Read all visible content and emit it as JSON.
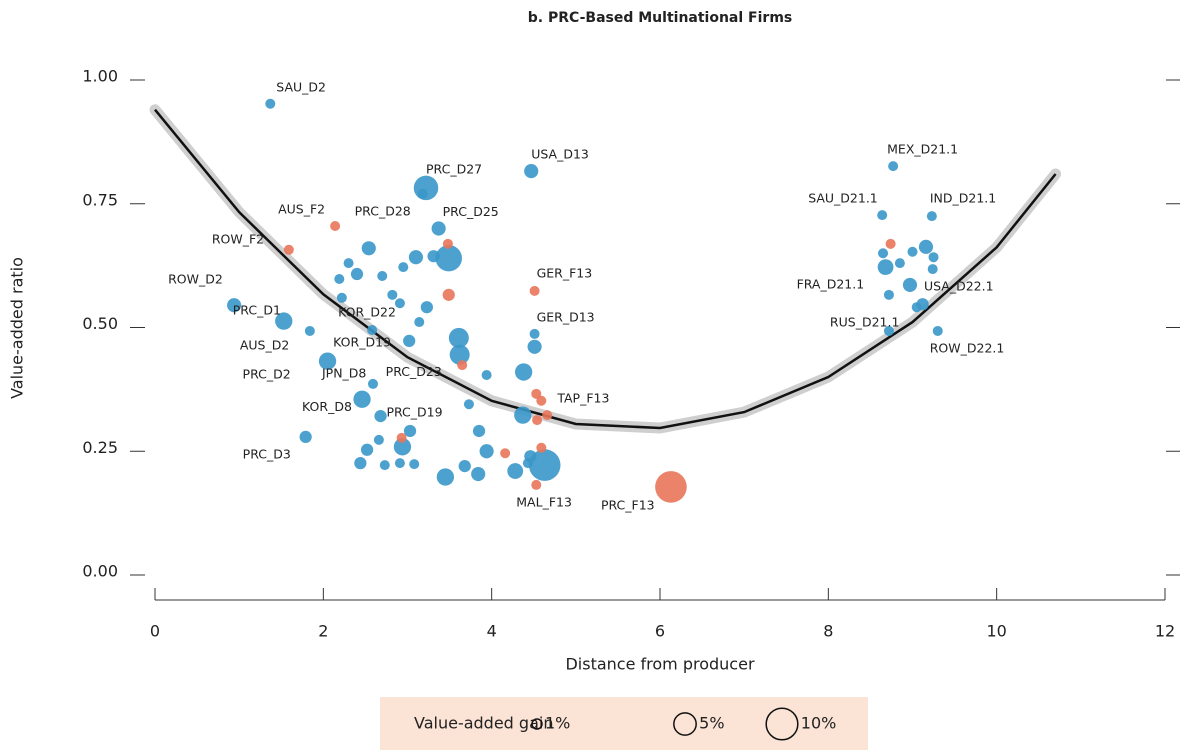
{
  "chart_data": {
    "type": "scatter",
    "title": "b. PRC-Based Multinational Firms",
    "x_label": "Distance from producer",
    "y_label": "Value-added ratio",
    "xlim": [
      0,
      12
    ],
    "xticks": [
      0,
      2,
      4,
      6,
      8,
      10,
      12
    ],
    "ylim": [
      0,
      1
    ],
    "yticks": [
      {
        "value": 0,
        "label": "0.00"
      },
      {
        "value": 0.25,
        "label": "0.25"
      },
      {
        "value": 0.5,
        "label": "0.50"
      },
      {
        "value": 0.75,
        "label": "0.75"
      },
      {
        "value": 1,
        "label": "1.00"
      }
    ],
    "series": [
      {
        "color": "#3a97c9",
        "points": [
          {
            "label": "SAU_D2",
            "x": 1.37,
            "y": 0.952,
            "gain": 1
          },
          {
            "label": "PRC_D27",
            "x": 3.22,
            "y": 0.782,
            "gain": 6
          },
          {
            "label": "USA_D13",
            "x": 4.47,
            "y": 0.816,
            "gain": 2
          },
          {
            "label": "PRC_D28",
            "x": 3.18,
            "y": 0.77,
            "gain": 1
          },
          {
            "label": "PRC_D25",
            "x": 3.37,
            "y": 0.7,
            "gain": 2
          },
          {
            "label": "ROW_D2",
            "x": 0.94,
            "y": 0.545,
            "gain": 2
          },
          {
            "label": "PRC_D1",
            "x": 1.53,
            "y": 0.513,
            "gain": 3
          },
          {
            "label": "KOR_D22",
            "x": 2.58,
            "y": 0.495,
            "gain": 1
          },
          {
            "label": "AUS_D2",
            "x": 1.84,
            "y": 0.493,
            "gain": 1
          },
          {
            "label": "KOR_D19",
            "x": 3.02,
            "y": 0.473,
            "gain": 1.5
          },
          {
            "label": "PRC_D2",
            "x": 2.05,
            "y": 0.432,
            "gain": 3
          },
          {
            "label": "JPN_D8",
            "x": 2.59,
            "y": 0.386,
            "gain": 1
          },
          {
            "label": "PRC_D23",
            "x": 3.62,
            "y": 0.445,
            "gain": 4
          },
          {
            "label": "KOR_D8",
            "x": 2.46,
            "y": 0.355,
            "gain": 3
          },
          {
            "label": "PRC_D19",
            "x": 2.94,
            "y": 0.259,
            "gain": 3
          },
          {
            "label": "PRC_D3",
            "x": 1.79,
            "y": 0.279,
            "gain": 1.5
          },
          {
            "label": "MEX_D21.1",
            "x": 8.77,
            "y": 0.826,
            "gain": 1
          },
          {
            "label": "SAU_D21.1",
            "x": 8.64,
            "y": 0.727,
            "gain": 1
          },
          {
            "label": "IND_D21.1",
            "x": 9.23,
            "y": 0.725,
            "gain": 1
          },
          {
            "label": "FRA_D21.1",
            "x": 8.68,
            "y": 0.622,
            "gain": 2.5
          },
          {
            "label": "USA_D22.1",
            "x": 8.97,
            "y": 0.586,
            "gain": 2
          },
          {
            "label": "RUS_D21.1",
            "x": 8.72,
            "y": 0.493,
            "gain": 1
          },
          {
            "label": "ROW_D22.1",
            "x": 9.3,
            "y": 0.493,
            "gain": 1
          },
          {
            "label": "GER_D13",
            "x": 4.51,
            "y": 0.487,
            "gain": 1
          },
          {
            "label": null,
            "x": 3.49,
            "y": 0.64,
            "gain": 7
          },
          {
            "label": null,
            "x": 4.63,
            "y": 0.222,
            "gain": 10
          },
          {
            "label": null,
            "x": 3.45,
            "y": 0.198,
            "gain": 3
          },
          {
            "label": null,
            "x": 4.38,
            "y": 0.41,
            "gain": 3
          },
          {
            "label": null,
            "x": 4.37,
            "y": 0.323,
            "gain": 3
          },
          {
            "label": null,
            "x": 3.61,
            "y": 0.479,
            "gain": 4
          },
          {
            "label": null,
            "x": 4.28,
            "y": 0.21,
            "gain": 2.5
          },
          {
            "label": null,
            "x": 3.94,
            "y": 0.25,
            "gain": 2
          },
          {
            "label": null,
            "x": 3.84,
            "y": 0.204,
            "gain": 2
          },
          {
            "label": null,
            "x": 3.68,
            "y": 0.22,
            "gain": 1.5
          },
          {
            "label": null,
            "x": 2.44,
            "y": 0.226,
            "gain": 1.5
          },
          {
            "label": null,
            "x": 2.52,
            "y": 0.253,
            "gain": 1.5
          },
          {
            "label": null,
            "x": 3.03,
            "y": 0.291,
            "gain": 1.5
          },
          {
            "label": null,
            "x": 3.85,
            "y": 0.291,
            "gain": 1.5
          },
          {
            "label": null,
            "x": 3.73,
            "y": 0.345,
            "gain": 1
          },
          {
            "label": null,
            "x": 3.94,
            "y": 0.404,
            "gain": 1
          },
          {
            "label": null,
            "x": 2.54,
            "y": 0.66,
            "gain": 2
          },
          {
            "label": null,
            "x": 3.1,
            "y": 0.642,
            "gain": 2
          },
          {
            "label": null,
            "x": 3.31,
            "y": 0.644,
            "gain": 1.5
          },
          {
            "label": null,
            "x": 2.95,
            "y": 0.622,
            "gain": 1
          },
          {
            "label": null,
            "x": 2.7,
            "y": 0.604,
            "gain": 1
          },
          {
            "label": null,
            "x": 2.4,
            "y": 0.608,
            "gain": 1.5
          },
          {
            "label": null,
            "x": 2.3,
            "y": 0.63,
            "gain": 1
          },
          {
            "label": null,
            "x": 3.23,
            "y": 0.541,
            "gain": 1.5
          },
          {
            "label": null,
            "x": 2.91,
            "y": 0.549,
            "gain": 1
          },
          {
            "label": null,
            "x": 2.82,
            "y": 0.566,
            "gain": 1
          },
          {
            "label": null,
            "x": 3.14,
            "y": 0.511,
            "gain": 1
          },
          {
            "label": null,
            "x": 2.22,
            "y": 0.56,
            "gain": 1
          },
          {
            "label": null,
            "x": 2.19,
            "y": 0.598,
            "gain": 1
          },
          {
            "label": null,
            "x": 2.68,
            "y": 0.321,
            "gain": 1.5
          },
          {
            "label": null,
            "x": 2.66,
            "y": 0.273,
            "gain": 1
          },
          {
            "label": null,
            "x": 2.73,
            "y": 0.222,
            "gain": 1
          },
          {
            "label": null,
            "x": 2.91,
            "y": 0.226,
            "gain": 1
          },
          {
            "label": null,
            "x": 3.08,
            "y": 0.224,
            "gain": 1
          },
          {
            "label": null,
            "x": 4.46,
            "y": 0.24,
            "gain": 1.5
          },
          {
            "label": null,
            "x": 4.43,
            "y": 0.226,
            "gain": 1
          },
          {
            "label": null,
            "x": 4.51,
            "y": 0.461,
            "gain": 2
          },
          {
            "label": null,
            "x": 9.0,
            "y": 0.653,
            "gain": 1
          },
          {
            "label": null,
            "x": 8.65,
            "y": 0.65,
            "gain": 1
          },
          {
            "label": null,
            "x": 9.16,
            "y": 0.663,
            "gain": 2
          },
          {
            "label": null,
            "x": 9.25,
            "y": 0.642,
            "gain": 1
          },
          {
            "label": null,
            "x": 9.24,
            "y": 0.618,
            "gain": 1
          },
          {
            "label": null,
            "x": 9.12,
            "y": 0.547,
            "gain": 1.5
          },
          {
            "label": null,
            "x": 9.05,
            "y": 0.541,
            "gain": 1
          },
          {
            "label": null,
            "x": 8.72,
            "y": 0.566,
            "gain": 1
          },
          {
            "label": null,
            "x": 8.85,
            "y": 0.63,
            "gain": 1
          }
        ]
      },
      {
        "color": "#e8765a",
        "points": [
          {
            "label": "AUS_F2",
            "x": 2.14,
            "y": 0.705,
            "gain": 1
          },
          {
            "label": "ROW_F2",
            "x": 1.59,
            "y": 0.657,
            "gain": 1
          },
          {
            "label": "GER_F13",
            "x": 4.51,
            "y": 0.574,
            "gain": 1
          },
          {
            "label": "TAP_F13",
            "x": 4.59,
            "y": 0.352,
            "gain": 1
          },
          {
            "label": "MAL_F13",
            "x": 4.53,
            "y": 0.182,
            "gain": 1
          },
          {
            "label": "PRC_F13",
            "x": 6.13,
            "y": 0.178,
            "gain": 10
          },
          {
            "label": null,
            "x": 3.48,
            "y": 0.669,
            "gain": 1
          },
          {
            "label": null,
            "x": 3.49,
            "y": 0.566,
            "gain": 1.5
          },
          {
            "label": null,
            "x": 3.65,
            "y": 0.424,
            "gain": 1
          },
          {
            "label": null,
            "x": 4.16,
            "y": 0.246,
            "gain": 1
          },
          {
            "label": null,
            "x": 4.59,
            "y": 0.257,
            "gain": 1
          },
          {
            "label": null,
            "x": 4.53,
            "y": 0.366,
            "gain": 1
          },
          {
            "label": null,
            "x": 4.66,
            "y": 0.323,
            "gain": 1
          },
          {
            "label": null,
            "x": 4.54,
            "y": 0.313,
            "gain": 1
          },
          {
            "label": null,
            "x": 2.93,
            "y": 0.277,
            "gain": 1
          },
          {
            "label": null,
            "x": 8.74,
            "y": 0.669,
            "gain": 1
          }
        ]
      }
    ],
    "fit": {
      "color": "#111111",
      "x": [
        0,
        1,
        2,
        3,
        4,
        5,
        6,
        7,
        8,
        9,
        10,
        10.7
      ],
      "values": [
        0.94,
        0.733,
        0.567,
        0.44,
        0.352,
        0.305,
        0.297,
        0.329,
        0.4,
        0.511,
        0.662,
        0.81
      ]
    },
    "size_legend": {
      "title": "Value-added gain",
      "items": [
        {
          "value": 1,
          "label": "1%"
        },
        {
          "value": 5,
          "label": "5%"
        },
        {
          "value": 10,
          "label": "10%"
        }
      ]
    }
  }
}
